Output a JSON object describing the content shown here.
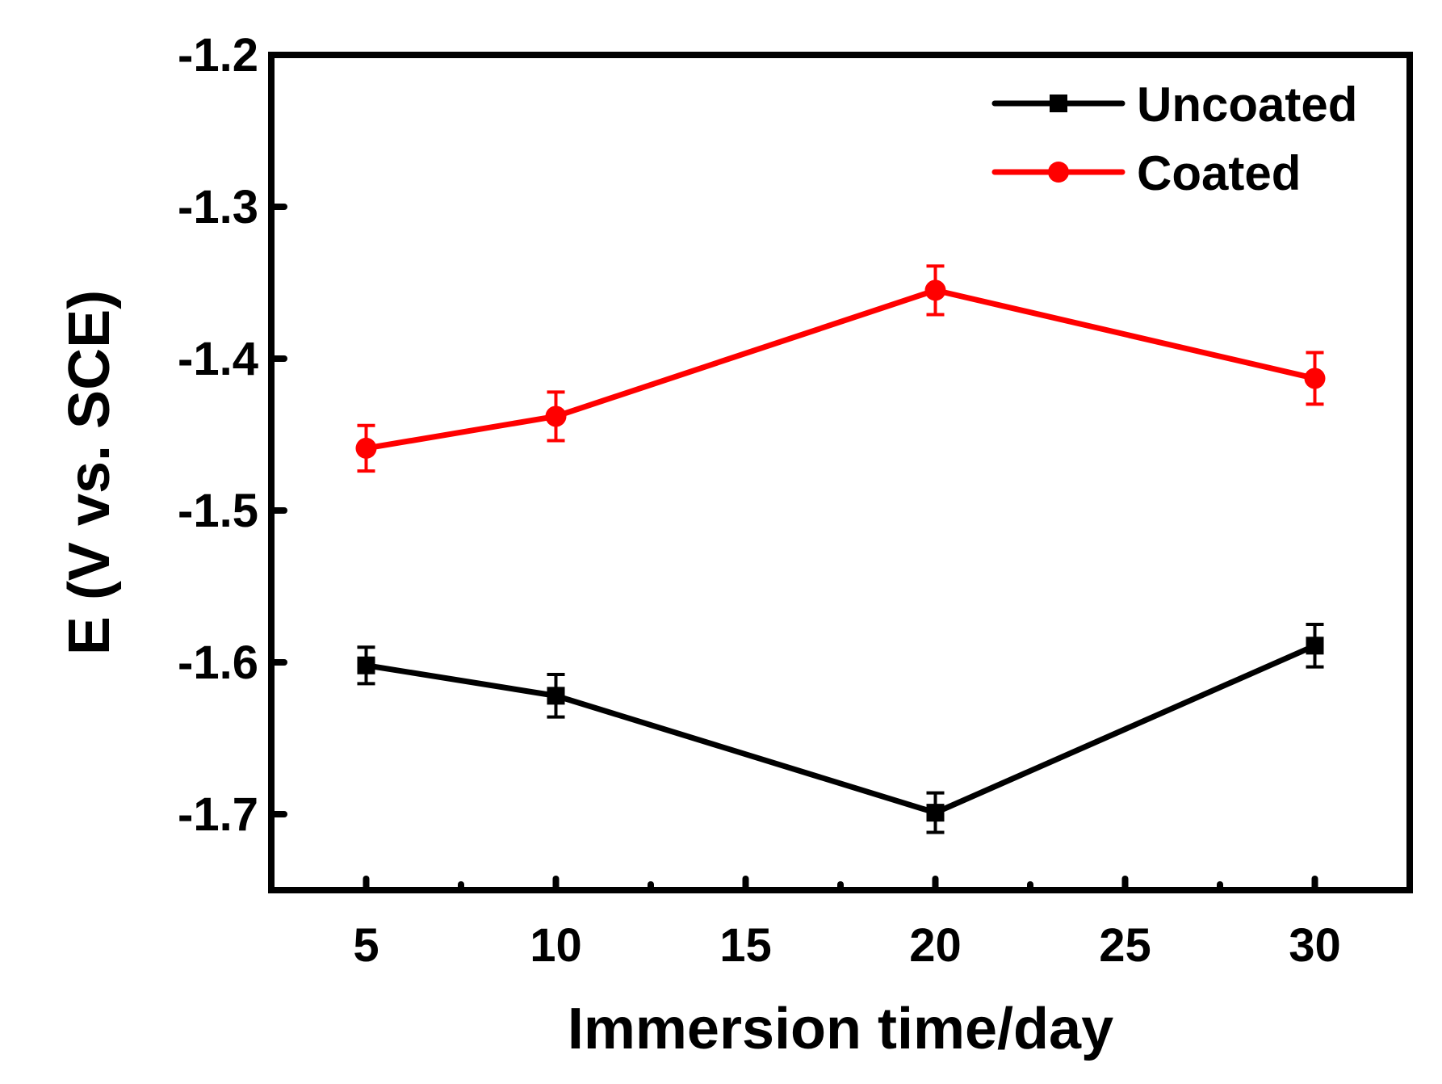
{
  "chart_data": {
    "type": "line",
    "title": "",
    "xlabel": "Immersion time/day",
    "ylabel": "E (V vs. SCE)",
    "xlim": [
      2.5,
      32.5
    ],
    "ylim": [
      -1.75,
      -1.2
    ],
    "xticks": [
      5,
      10,
      15,
      20,
      25,
      30
    ],
    "xtick_labels": [
      "5",
      "10",
      "15",
      "20",
      "25",
      "30"
    ],
    "yticks": [
      -1.2,
      -1.3,
      -1.4,
      -1.5,
      -1.6,
      -1.7
    ],
    "ytick_labels": [
      "-1.2",
      "-1.3",
      "-1.4",
      "-1.5",
      "-1.6",
      "-1.7"
    ],
    "grid": false,
    "legend_position": "top-right",
    "series": [
      {
        "name": "Uncoated",
        "color": "#000000",
        "marker": "square",
        "x": [
          5,
          10,
          20,
          30
        ],
        "y": [
          -1.602,
          -1.622,
          -1.699,
          -1.589
        ],
        "error": [
          0.012,
          0.014,
          0.013,
          0.014
        ]
      },
      {
        "name": "Coated",
        "color": "#ff0000",
        "marker": "circle",
        "x": [
          5,
          10,
          20,
          30
        ],
        "y": [
          -1.459,
          -1.438,
          -1.355,
          -1.413
        ],
        "error": [
          0.015,
          0.016,
          0.016,
          0.017
        ]
      }
    ]
  }
}
